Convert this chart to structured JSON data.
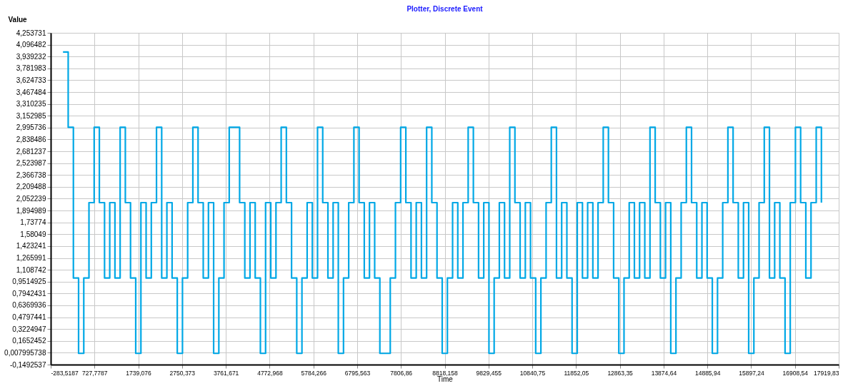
{
  "chart_data": {
    "type": "step",
    "title": "Plotter, Discrete Event",
    "xlabel": "Time",
    "ylabel": "Value",
    "series": [
      {
        "color": "#00a8e6",
        "x": [
          0,
          120,
          240,
          360,
          480,
          600,
          720,
          840,
          960,
          1080,
          1200,
          1320,
          1440,
          1560,
          1680,
          1800,
          1920,
          2040,
          2160,
          2280,
          2400,
          2520,
          2640,
          2760,
          2880,
          3000,
          3120,
          3240,
          3360,
          3480,
          3600,
          3720,
          3840,
          3960,
          4080,
          4200,
          4320,
          4440,
          4560,
          4680,
          4800,
          4920,
          5040,
          5160,
          5280,
          5400,
          5520,
          5640,
          5760,
          5880,
          6000,
          6120,
          6240,
          6360,
          6480,
          6600,
          6720,
          6840,
          6960,
          7080,
          7200,
          7320,
          7440,
          7560,
          7680,
          7800,
          7920,
          8040,
          8160,
          8280,
          8400,
          8520,
          8640,
          8760,
          8880,
          9000,
          9120,
          9240,
          9360,
          9480,
          9600,
          9720,
          9840,
          9960,
          10080,
          10200,
          10320,
          10440,
          10560,
          10680,
          10800,
          10920,
          11040,
          11160,
          11280,
          11400,
          11520,
          11640,
          11760,
          11880,
          12000,
          12120,
          12240,
          12360,
          12480,
          12600,
          12720,
          12840,
          12960,
          13080,
          13200,
          13320,
          13440,
          13560,
          13680,
          13800,
          13920,
          14040,
          14160,
          14280,
          14400,
          14520,
          14640,
          14760,
          14880,
          15000,
          15120,
          15240,
          15360,
          15480,
          15600,
          15720,
          15840,
          15960,
          16080,
          16200,
          16320,
          16440,
          16560,
          16680,
          16800,
          16920,
          17040,
          17160,
          17280,
          17400,
          17520
        ],
        "values": [
          4,
          3,
          1,
          0,
          1,
          2,
          3,
          2,
          1,
          2,
          1,
          3,
          2,
          1,
          0,
          2,
          1,
          2,
          3,
          1,
          2,
          1,
          0,
          1,
          2,
          3,
          2,
          1,
          2,
          0,
          1,
          2,
          3,
          3,
          2,
          1,
          2,
          1,
          0,
          2,
          1,
          2,
          3,
          2,
          1,
          0,
          1,
          2,
          1,
          3,
          2,
          1,
          2,
          0,
          1,
          2,
          3,
          2,
          1,
          2,
          1,
          0,
          0,
          1,
          2,
          3,
          2,
          1,
          2,
          1,
          3,
          2,
          1,
          0,
          1,
          2,
          1,
          2,
          3,
          2,
          1,
          2,
          0,
          1,
          2,
          1,
          3,
          2,
          1,
          2,
          1,
          0,
          1,
          2,
          3,
          1,
          2,
          1,
          0,
          2,
          1,
          2,
          1,
          2,
          3,
          2,
          1,
          0,
          1,
          2,
          1,
          2,
          1,
          3,
          2,
          1,
          2,
          0,
          1,
          2,
          3,
          2,
          1,
          2,
          1,
          0,
          1,
          2,
          3,
          2,
          1,
          2,
          0,
          1,
          2,
          3,
          1,
          2,
          1,
          0,
          2,
          3,
          2,
          1,
          2,
          3,
          2
        ]
      }
    ],
    "xlim": [
      -283.5187,
      17919.83
    ],
    "xticks": [
      {
        "value": -283.5187,
        "label": "-283,5187"
      },
      {
        "value": 727.7787,
        "label": "727,7787"
      },
      {
        "value": 1739.076,
        "label": "1739,076"
      },
      {
        "value": 2750.373,
        "label": "2750,373"
      },
      {
        "value": 3761.671,
        "label": "3761,671"
      },
      {
        "value": 4772.968,
        "label": "4772,968"
      },
      {
        "value": 5784.266,
        "label": "5784,266"
      },
      {
        "value": 6795.563,
        "label": "6795,563"
      },
      {
        "value": 7806.86,
        "label": "7806,86"
      },
      {
        "value": 8818.158,
        "label": "8818,158"
      },
      {
        "value": 9829.455,
        "label": "9829,455"
      },
      {
        "value": 10840.75,
        "label": "10840,75"
      },
      {
        "value": 11852.05,
        "label": "11852,05"
      },
      {
        "value": 12863.35,
        "label": "12863,35"
      },
      {
        "value": 13874.64,
        "label": "13874,64"
      },
      {
        "value": 14885.94,
        "label": "14885,94"
      },
      {
        "value": 15897.24,
        "label": "15897,24"
      },
      {
        "value": 16908.54,
        "label": "16908,54"
      },
      {
        "value": 17919.83,
        "label": "17919,83"
      }
    ],
    "ylim": [
      -0.1492537,
      4.253731
    ],
    "yticks": [
      {
        "value": -0.1492537,
        "label": "-0,1492537"
      },
      {
        "value": 0.007995738,
        "label": "0,007995738"
      },
      {
        "value": 0.1652452,
        "label": "0,1652452"
      },
      {
        "value": 0.3224947,
        "label": "0,3224947"
      },
      {
        "value": 0.4797441,
        "label": "0,4797441"
      },
      {
        "value": 0.6369936,
        "label": "0,6369936"
      },
      {
        "value": 0.7942431,
        "label": "0,7942431"
      },
      {
        "value": 0.9514925,
        "label": "0,9514925"
      },
      {
        "value": 1.108742,
        "label": "1,108742"
      },
      {
        "value": 1.265991,
        "label": "1,265991"
      },
      {
        "value": 1.423241,
        "label": "1,423241"
      },
      {
        "value": 1.58049,
        "label": "1,58049"
      },
      {
        "value": 1.73774,
        "label": "1,73774"
      },
      {
        "value": 1.894989,
        "label": "1,894989"
      },
      {
        "value": 2.052239,
        "label": "2,052239"
      },
      {
        "value": 2.209488,
        "label": "2,209488"
      },
      {
        "value": 2.366738,
        "label": "2,366738"
      },
      {
        "value": 2.523987,
        "label": "2,523987"
      },
      {
        "value": 2.681237,
        "label": "2,681237"
      },
      {
        "value": 2.838486,
        "label": "2,838486"
      },
      {
        "value": 2.995736,
        "label": "2,995736"
      },
      {
        "value": 3.152985,
        "label": "3,152985"
      },
      {
        "value": 3.310235,
        "label": "3,310235"
      },
      {
        "value": 3.467484,
        "label": "3,467484"
      },
      {
        "value": 3.624733,
        "label": "3,624733"
      },
      {
        "value": 3.781983,
        "label": "3,781983"
      },
      {
        "value": 3.939232,
        "label": "3,939232"
      },
      {
        "value": 4.096482,
        "label": "4,096482"
      },
      {
        "value": 4.253731,
        "label": "4,253731"
      }
    ],
    "grid": true,
    "marker": "none",
    "line_style": "solid"
  }
}
